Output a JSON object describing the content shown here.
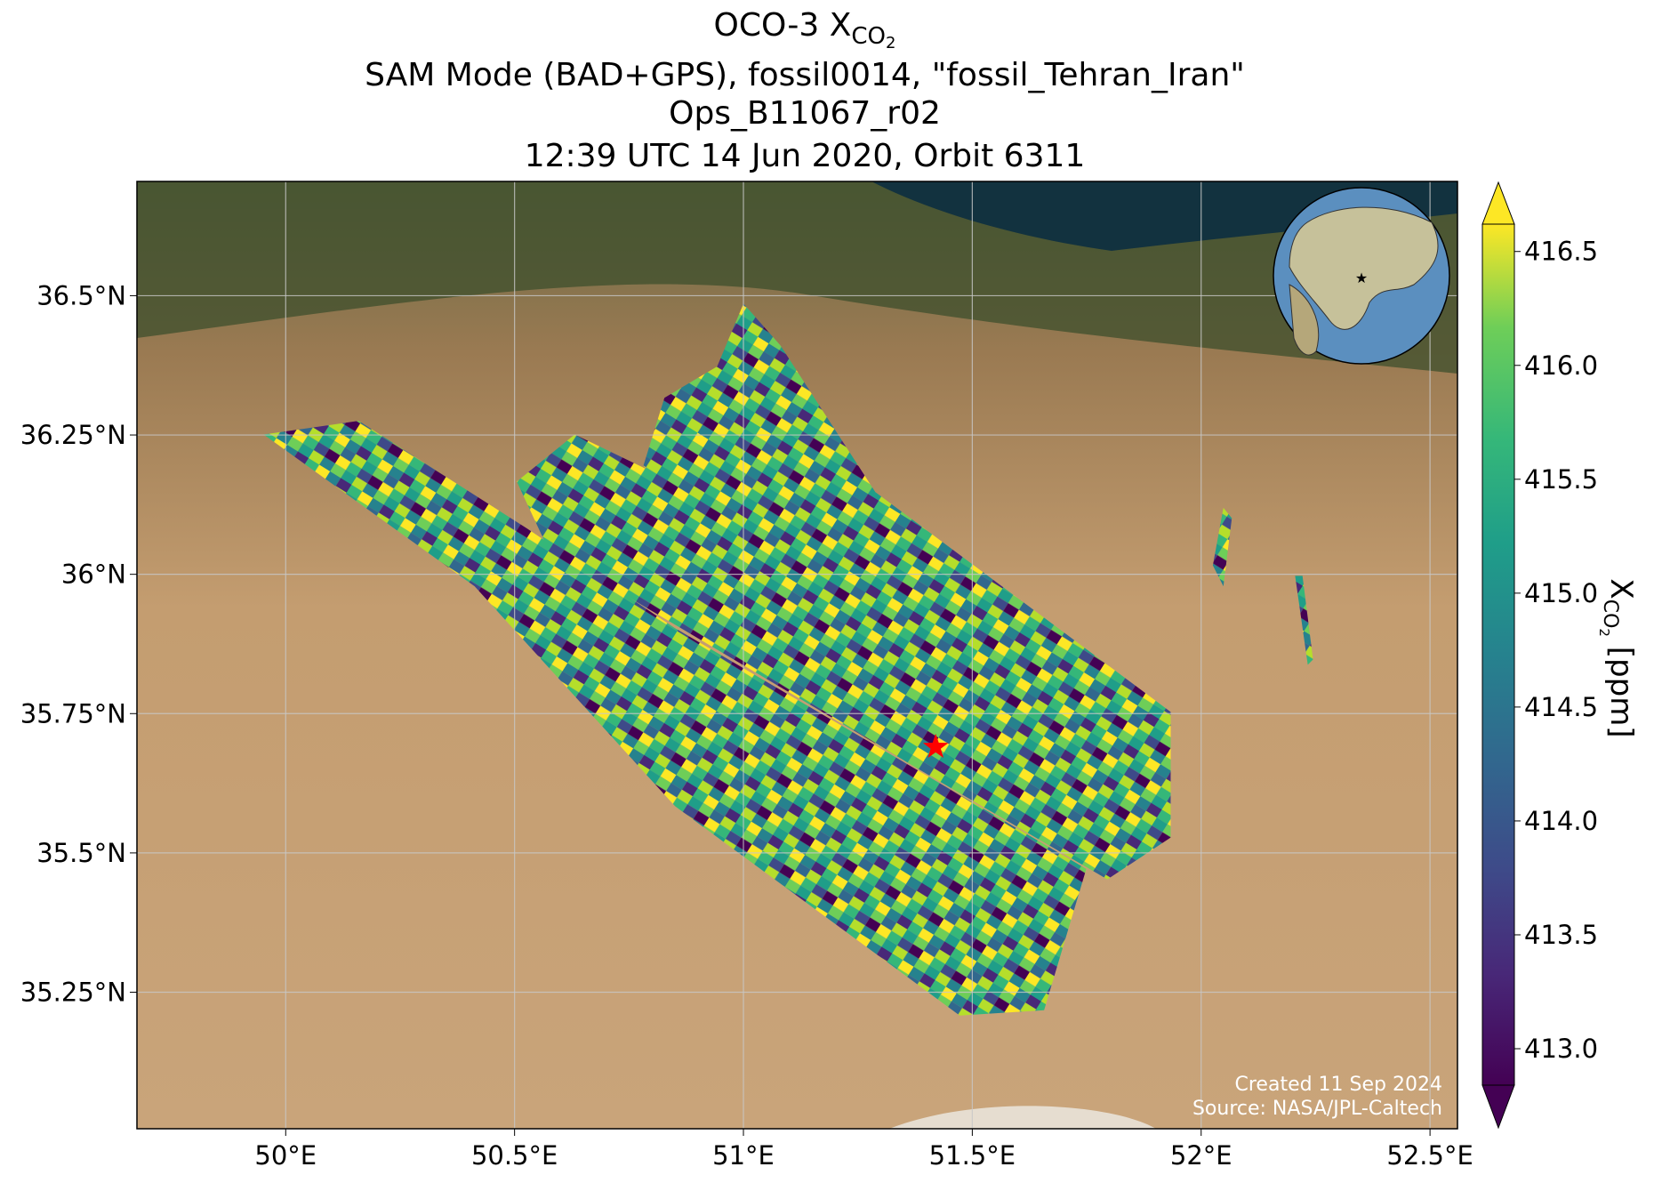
{
  "title": {
    "main": "OCO-3 X",
    "main_sub": "CO",
    "main_subsub": "2",
    "line2": "SAM Mode (BAD+GPS), fossil0014, \"fossil_Tehran_Iran\"",
    "line3": "Ops_B11067_r02",
    "line4": "12:39 UTC 14 Jun 2020, Orbit 6311"
  },
  "map": {
    "xlim": [
      49.675,
      52.56
    ],
    "ylim": [
      35.005,
      36.705
    ],
    "grid": true,
    "xticks": [
      {
        "value": 50,
        "label": "50°E"
      },
      {
        "value": 50.5,
        "label": "50.5°E"
      },
      {
        "value": 51,
        "label": "51°E"
      },
      {
        "value": 51.5,
        "label": "51.5°E"
      },
      {
        "value": 52,
        "label": "52°E"
      },
      {
        "value": 52.5,
        "label": "52.5°E"
      }
    ],
    "yticks": [
      {
        "value": 35.25,
        "label": "35.25°N"
      },
      {
        "value": 35.5,
        "label": "35.5°N"
      },
      {
        "value": 35.75,
        "label": "35.75°N"
      },
      {
        "value": 36,
        "label": "36°N"
      },
      {
        "value": 36.25,
        "label": "36.25°N"
      },
      {
        "value": 36.5,
        "label": "36.5°N"
      }
    ],
    "target": {
      "lon": 51.42,
      "lat": 35.69,
      "color": "#ff0000"
    },
    "credit_created": "Created 11 Sep 2024",
    "credit_source": "Source: NASA/JPL-Caltech"
  },
  "colorbar": {
    "lim": [
      412.84,
      416.62
    ],
    "ticks": [
      {
        "value": 413,
        "label": "413.0"
      },
      {
        "value": 413.5,
        "label": "413.5"
      },
      {
        "value": 414,
        "label": "414.0"
      },
      {
        "value": 414.5,
        "label": "414.5"
      },
      {
        "value": 415,
        "label": "415.0"
      },
      {
        "value": 415.5,
        "label": "415.5"
      },
      {
        "value": 416,
        "label": "416.0"
      },
      {
        "value": 416.5,
        "label": "416.5"
      }
    ],
    "label": "X",
    "label_sub": "CO",
    "label_subsub": "2",
    "label_unit": " [ppm]"
  }
}
